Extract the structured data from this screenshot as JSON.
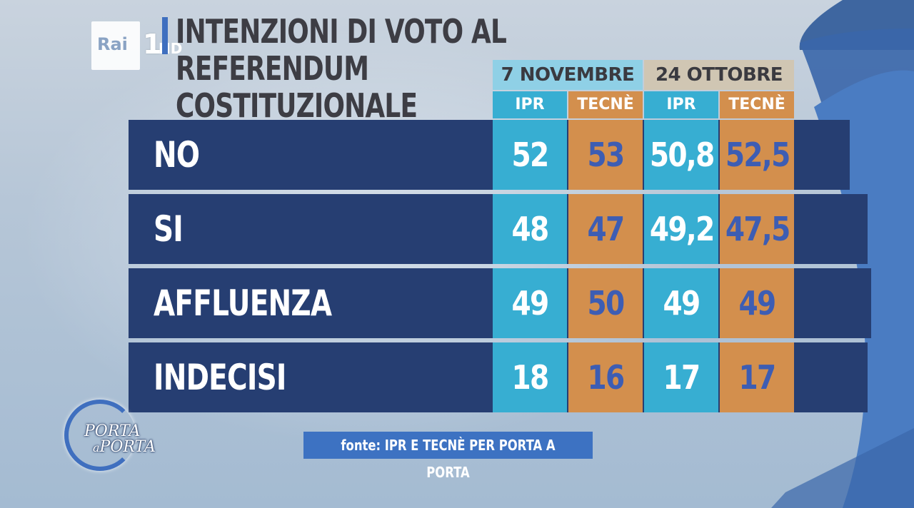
{
  "channel": {
    "rai": "Rai",
    "number": "1",
    "hd": "HD"
  },
  "title": "INTENZIONI DI VOTO AL REFERENDUM COSTITUZIONALE",
  "headers": {
    "dates": [
      "7 NOVEMBRE",
      "24 OTTOBRE"
    ],
    "sources": [
      "IPR",
      "TECNÈ",
      "IPR",
      "TECNÈ"
    ]
  },
  "chart_data": {
    "type": "table",
    "title": "INTENZIONI DI VOTO AL REFERENDUM COSTITUZIONALE",
    "column_groups": [
      "7 NOVEMBRE",
      "24 OTTOBRE"
    ],
    "columns": [
      "IPR",
      "TECNÈ",
      "IPR",
      "TECNÈ"
    ],
    "rows": [
      {
        "label": "NO",
        "values": [
          "52",
          "53",
          "50,8",
          "52,5"
        ]
      },
      {
        "label": "SI",
        "values": [
          "48",
          "47",
          "49,2",
          "47,5"
        ]
      },
      {
        "label": "AFFLUENZA",
        "values": [
          "49",
          "50",
          "49",
          "49"
        ]
      },
      {
        "label": "INDECISI",
        "values": [
          "18",
          "16",
          "17",
          "17"
        ]
      }
    ]
  },
  "footer": {
    "fonte": "fonte: IPR E TECNÈ PER PORTA A PORTA"
  },
  "show_logo": {
    "line1": "PORTA",
    "line2_small": "a",
    "line2": "PORTA"
  },
  "colors": {
    "row_bg": "#263e72",
    "ipr": "#37aed2",
    "tecne": "#d38f4d",
    "tecne_text": "#3d5db3",
    "accent": "#3d72c2"
  }
}
